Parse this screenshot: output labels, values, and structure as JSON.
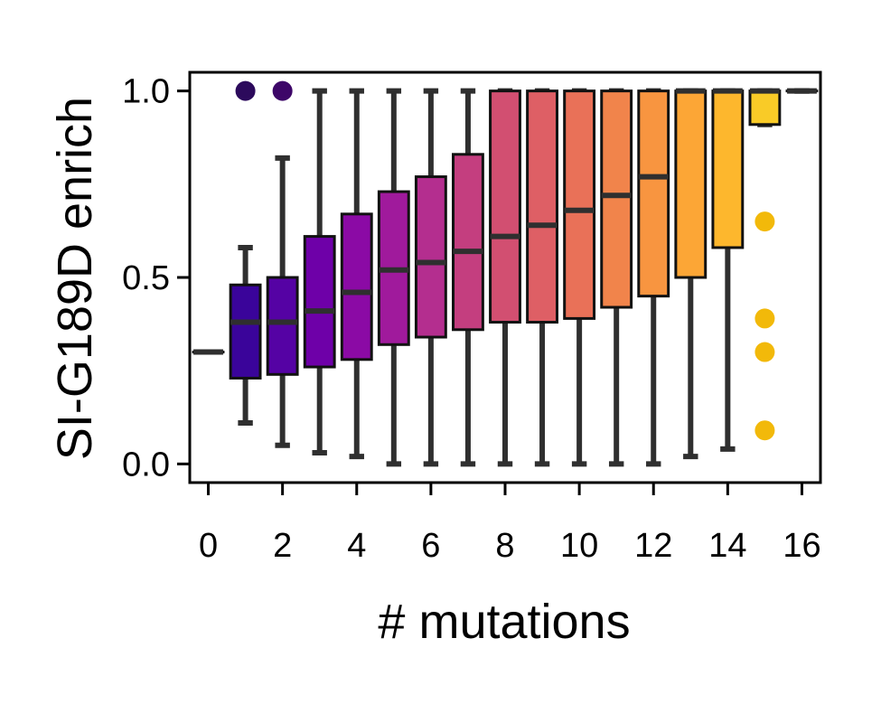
{
  "chart_data": {
    "type": "box",
    "xlabel": "# mutations",
    "ylabel": "SI-G189D enrich",
    "xlim": [
      -0.5,
      16.5
    ],
    "ylim": [
      -0.05,
      1.05
    ],
    "xticks": [
      "0",
      "2",
      "4",
      "6",
      "8",
      "10",
      "12",
      "14",
      "16"
    ],
    "xtick_values": [
      0,
      2,
      4,
      6,
      8,
      10,
      12,
      14,
      16
    ],
    "yticks": [
      "0.0",
      "0.5",
      "1.0"
    ],
    "ytick_values": [
      0,
      0.5,
      1.0
    ],
    "grid": false,
    "boxes": [
      {
        "x": 0,
        "whislo": 0.3,
        "q1": 0.3,
        "med": 0.3,
        "q3": 0.3,
        "whishi": 0.3,
        "fliers": [],
        "color": "#0d0887"
      },
      {
        "x": 1,
        "whislo": 0.11,
        "q1": 0.23,
        "med": 0.38,
        "q3": 0.48,
        "whishi": 0.58,
        "fliers": [
          1.0
        ],
        "color": "#3a049a"
      },
      {
        "x": 2,
        "whislo": 0.05,
        "q1": 0.24,
        "med": 0.38,
        "q3": 0.5,
        "whishi": 0.82,
        "fliers": [
          1.0
        ],
        "color": "#5502a4"
      },
      {
        "x": 3,
        "whislo": 0.03,
        "q1": 0.26,
        "med": 0.41,
        "q3": 0.61,
        "whishi": 1.0,
        "fliers": [],
        "color": "#6e00a8"
      },
      {
        "x": 4,
        "whislo": 0.02,
        "q1": 0.28,
        "med": 0.46,
        "q3": 0.67,
        "whishi": 1.0,
        "fliers": [],
        "color": "#8b0aa5"
      },
      {
        "x": 5,
        "whislo": 0.0,
        "q1": 0.32,
        "med": 0.52,
        "q3": 0.73,
        "whishi": 1.0,
        "fliers": [],
        "color": "#a01a9c"
      },
      {
        "x": 6,
        "whislo": 0.0,
        "q1": 0.34,
        "med": 0.54,
        "q3": 0.77,
        "whishi": 1.0,
        "fliers": [],
        "color": "#b42e8f"
      },
      {
        "x": 7,
        "whislo": 0.0,
        "q1": 0.36,
        "med": 0.57,
        "q3": 0.83,
        "whishi": 1.0,
        "fliers": [],
        "color": "#c43e7f"
      },
      {
        "x": 8,
        "whislo": 0.0,
        "q1": 0.38,
        "med": 0.61,
        "q3": 1.0,
        "whishi": 1.0,
        "fliers": [],
        "color": "#d24f71"
      },
      {
        "x": 9,
        "whislo": 0.0,
        "q1": 0.38,
        "med": 0.64,
        "q3": 1.0,
        "whishi": 1.0,
        "fliers": [],
        "color": "#de5f65"
      },
      {
        "x": 10,
        "whislo": 0.0,
        "q1": 0.39,
        "med": 0.68,
        "q3": 1.0,
        "whishi": 1.0,
        "fliers": [],
        "color": "#e97158"
      },
      {
        "x": 11,
        "whislo": 0.0,
        "q1": 0.42,
        "med": 0.72,
        "q3": 1.0,
        "whishi": 1.0,
        "fliers": [],
        "color": "#f1844b"
      },
      {
        "x": 12,
        "whislo": 0.0,
        "q1": 0.45,
        "med": 0.77,
        "q3": 1.0,
        "whishi": 1.0,
        "fliers": [],
        "color": "#f89540"
      },
      {
        "x": 13,
        "whislo": 0.02,
        "q1": 0.5,
        "med": 1.0,
        "q3": 1.0,
        "whishi": 1.0,
        "fliers": [],
        "color": "#fca636"
      },
      {
        "x": 14,
        "whislo": 0.04,
        "q1": 0.58,
        "med": 1.0,
        "q3": 1.0,
        "whishi": 1.0,
        "fliers": [],
        "color": "#fdb72d"
      },
      {
        "x": 15,
        "whislo": 0.91,
        "q1": 0.91,
        "med": 1.0,
        "q3": 1.0,
        "whishi": 1.0,
        "fliers": [
          0.65,
          0.39,
          0.3,
          0.09
        ],
        "color": "#f9cb27"
      },
      {
        "x": 16,
        "whislo": 1.0,
        "q1": 1.0,
        "med": 1.0,
        "q3": 1.0,
        "whishi": 1.0,
        "fliers": [],
        "color": "#f0f921"
      }
    ],
    "flier_color_override": {
      "1": "#2c0a5c",
      "2": "#3d0668",
      "15": "#f2b90a"
    }
  }
}
